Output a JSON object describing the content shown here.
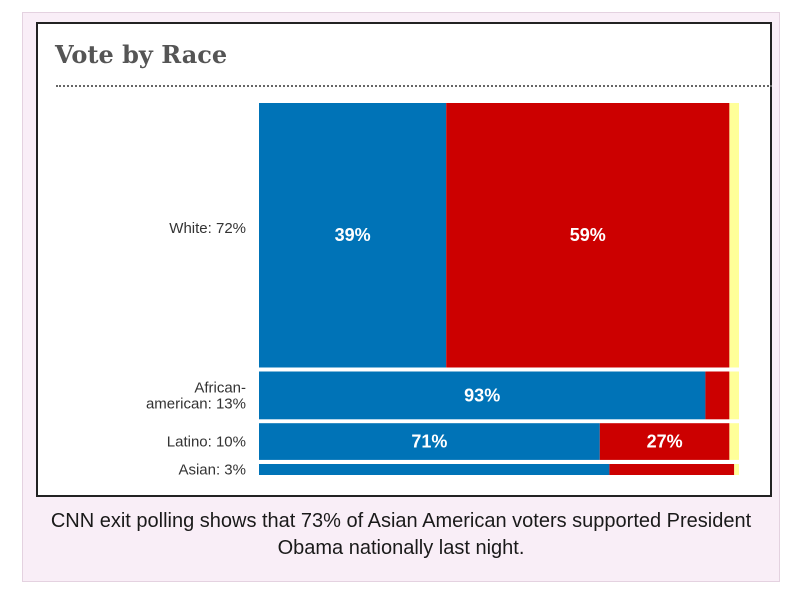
{
  "chart_data": {
    "type": "bar",
    "title": "Vote by Race",
    "categories": [
      {
        "label_lines": [
          "White: 72%"
        ],
        "share": 72,
        "segments": [
          39,
          59,
          2
        ],
        "labels": [
          "39%",
          "59%",
          ""
        ]
      },
      {
        "label_lines": [
          "African-",
          "american: 13%"
        ],
        "share": 13,
        "segments": [
          93,
          5,
          2
        ],
        "labels": [
          "93%",
          "",
          ""
        ]
      },
      {
        "label_lines": [
          "Latino: 10%"
        ],
        "share": 10,
        "segments": [
          71,
          27,
          2
        ],
        "labels": [
          "71%",
          "27%",
          ""
        ]
      },
      {
        "label_lines": [
          "Asian: 3%"
        ],
        "share": 3,
        "segments": [
          73,
          26,
          1
        ],
        "labels": [
          "",
          "",
          ""
        ]
      }
    ],
    "colors": [
      "#0073b7",
      "#cc0000",
      "#ffff99"
    ]
  },
  "caption": "CNN exit polling shows that 73% of Asian American voters supported President Obama nationally last night."
}
